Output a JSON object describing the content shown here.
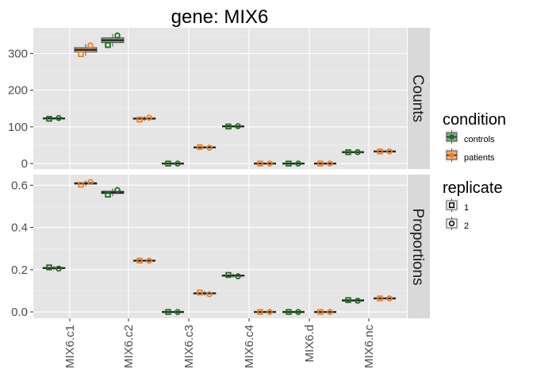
{
  "chart_data": {
    "type": "boxplot",
    "title": "gene: MIX6",
    "categories": [
      "MIX6.c1",
      "MIX6.c2",
      "MIX6.c3",
      "MIX6.c4",
      "MIX6.d",
      "MIX6.nc"
    ],
    "facets": [
      {
        "label": "Counts",
        "ylim": [
          -15,
          370
        ],
        "yticks": [
          0,
          100,
          200,
          300
        ],
        "series": [
          {
            "condition": "controls",
            "values": [
              {
                "r1": 122,
                "r2": 124
              },
              {
                "r1": 323,
                "r2": 349
              },
              {
                "r1": 0,
                "r2": 0
              },
              {
                "r1": 101,
                "r2": 102
              },
              {
                "r1": 0,
                "r2": 0
              },
              {
                "r1": 31,
                "r2": 31
              }
            ]
          },
          {
            "condition": "patients",
            "values": [
              {
                "r1": 298,
                "r2": 322
              },
              {
                "r1": 120,
                "r2": 125
              },
              {
                "r1": 45,
                "r2": 43
              },
              {
                "r1": 0,
                "r2": 0
              },
              {
                "r1": 0,
                "r2": 0
              },
              {
                "r1": 33,
                "r2": 33
              }
            ]
          }
        ]
      },
      {
        "label": "Proportions",
        "ylim": [
          -0.03,
          0.65
        ],
        "yticks": [
          0.0,
          0.2,
          0.4,
          0.6
        ],
        "series": [
          {
            "condition": "controls",
            "values": [
              {
                "r1": 0.211,
                "r2": 0.205
              },
              {
                "r1": 0.555,
                "r2": 0.577
              },
              {
                "r1": 0.0,
                "r2": 0.0
              },
              {
                "r1": 0.175,
                "r2": 0.169
              },
              {
                "r1": 0.0,
                "r2": 0.0
              },
              {
                "r1": 0.056,
                "r2": 0.053
              }
            ]
          },
          {
            "condition": "patients",
            "values": [
              {
                "r1": 0.602,
                "r2": 0.615
              },
              {
                "r1": 0.243,
                "r2": 0.242
              },
              {
                "r1": 0.092,
                "r2": 0.084
              },
              {
                "r1": 0.0,
                "r2": 0.0
              },
              {
                "r1": 0.0,
                "r2": 0.0
              },
              {
                "r1": 0.064,
                "r2": 0.064
              }
            ]
          }
        ]
      }
    ],
    "legend": {
      "position": "right",
      "condition": {
        "title": "condition",
        "entries": [
          "controls",
          "patients"
        ]
      },
      "replicate": {
        "title": "replicate",
        "entries": [
          "1",
          "2"
        ]
      }
    },
    "colors": {
      "controls_point": "#1b6e1b",
      "controls_box": "#88a888",
      "patients_point": "#f0801f",
      "patients_box": "#f3b07a",
      "panel_bg": "#e5e5e5",
      "strip_bg": "#d9d9d9",
      "grid": "#ffffff",
      "median": "#2a2a2a"
    },
    "grid": true
  }
}
